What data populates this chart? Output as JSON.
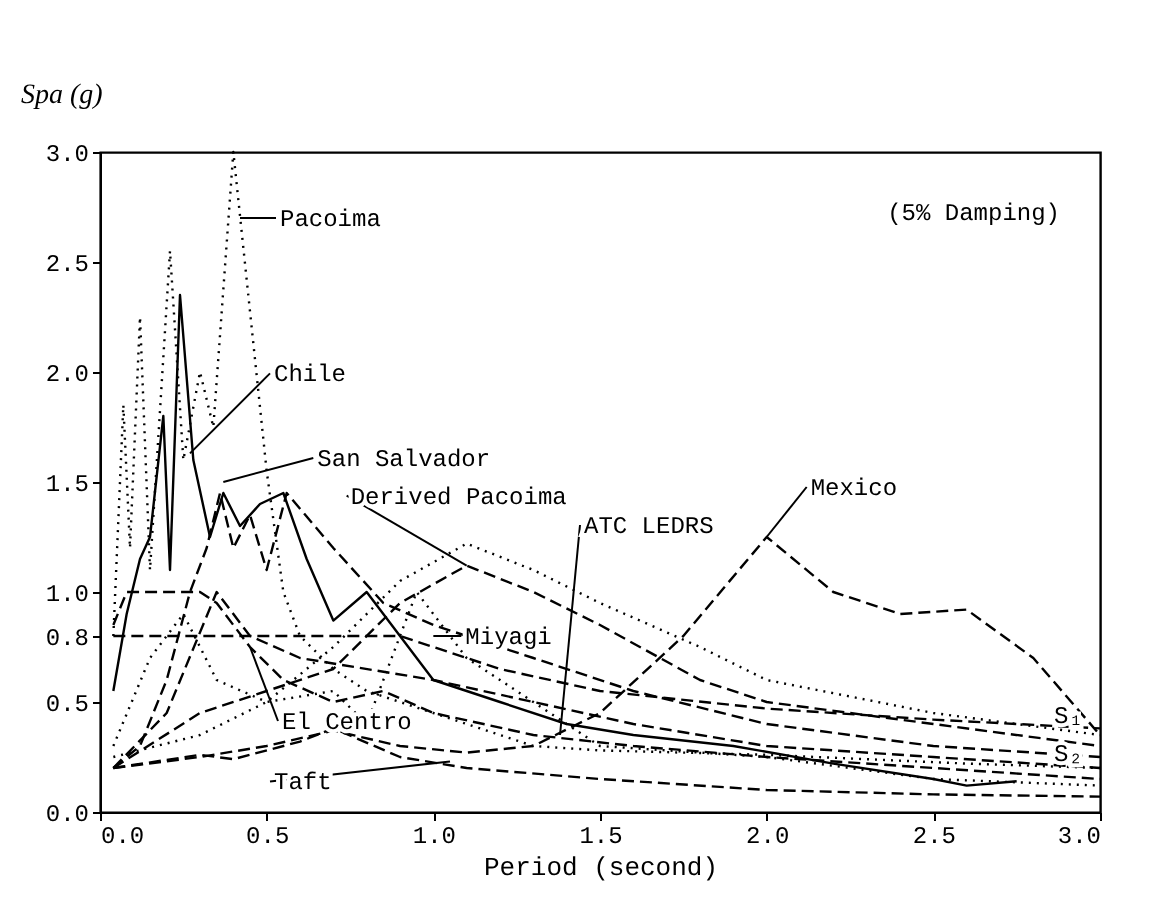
{
  "chart_data": {
    "type": "line",
    "xlabel": "Period (second)",
    "ylabel": "Spa (g)",
    "xlim": [
      0,
      3
    ],
    "ylim": [
      0,
      3
    ],
    "xticks": [
      {
        "value": 0,
        "label": "0.0"
      },
      0.5,
      {
        "value": 1,
        "label": "1.0"
      },
      1.5,
      {
        "value": 2,
        "label": "2.0"
      },
      2.5,
      {
        "value": 3,
        "label": "3.0"
      }
    ],
    "yticks": [
      {
        "value": 0,
        "label": "0.0"
      },
      0.5,
      0.8,
      {
        "value": 1,
        "label": "1.0"
      },
      1.5,
      {
        "value": 2,
        "label": "2.0"
      },
      2.5,
      {
        "value": 3,
        "label": "3.0"
      }
    ],
    "grid": false,
    "series": [
      {
        "color": "#000000",
        "line_style": "dotted",
        "x": [
          0.04,
          0.07,
          0.09,
          0.12,
          0.15,
          0.21,
          0.25,
          0.3,
          0.34,
          0.4,
          0.5,
          0.55,
          0.6,
          0.7,
          0.8,
          1.0,
          1.3,
          1.5,
          2.0,
          2.3,
          2.6,
          3.0
        ],
        "values": [
          0.8,
          1.85,
          1.2,
          2.25,
          1.1,
          2.55,
          1.6,
          2.0,
          1.75,
          3.0,
          1.55,
          1.0,
          0.8,
          0.65,
          0.55,
          0.45,
          0.3,
          0.28,
          0.26,
          0.24,
          0.22,
          0.2
        ]
      },
      {
        "color": "#000000",
        "line_style": "solid",
        "x": [
          0.04,
          0.08,
          0.12,
          0.15,
          0.19,
          0.21,
          0.24,
          0.28,
          0.33,
          0.37,
          0.42,
          0.48,
          0.55,
          0.62,
          0.7,
          0.8,
          0.9,
          1.0,
          1.2,
          1.4,
          1.6,
          1.9,
          2.2,
          2.5,
          2.6,
          2.75
        ],
        "values": [
          0.55,
          0.9,
          1.15,
          1.25,
          1.8,
          1.1,
          2.35,
          1.6,
          1.25,
          1.45,
          1.3,
          1.4,
          1.45,
          1.15,
          0.87,
          1.0,
          0.8,
          0.6,
          0.5,
          0.4,
          0.35,
          0.3,
          0.22,
          0.15,
          0.12,
          0.14
        ]
      },
      {
        "color": "#000000",
        "line_style": "dashed",
        "x": [
          0.04,
          0.12,
          0.2,
          0.27,
          0.32,
          0.36,
          0.4,
          0.45,
          0.5,
          0.56,
          0.7,
          0.85,
          1.0,
          1.3,
          1.6,
          2.0,
          2.5,
          3.0
        ],
        "values": [
          0.2,
          0.3,
          0.6,
          1.0,
          1.2,
          1.45,
          1.2,
          1.35,
          1.1,
          1.45,
          1.2,
          0.95,
          0.85,
          0.7,
          0.55,
          0.4,
          0.3,
          0.25
        ]
      },
      {
        "color": "#000000",
        "line_style": "dotted",
        "x": [
          0.04,
          0.3,
          0.5,
          0.7,
          0.9,
          1.1,
          1.3,
          1.5,
          1.8,
          2.0,
          2.5,
          3.0
        ],
        "values": [
          0.25,
          0.35,
          0.5,
          0.75,
          1.05,
          1.22,
          1.1,
          0.95,
          0.75,
          0.6,
          0.45,
          0.35
        ]
      },
      {
        "color": "#000000",
        "line_style": "dashed",
        "x": [
          0.04,
          0.3,
          0.5,
          0.7,
          0.9,
          1.1,
          1.3,
          1.5,
          1.8,
          2.0,
          2.5,
          3.0
        ],
        "values": [
          0.2,
          0.45,
          0.55,
          0.65,
          0.95,
          1.12,
          1.0,
          0.85,
          0.6,
          0.5,
          0.4,
          0.3
        ]
      },
      {
        "color": "#000000",
        "line_style": "dashed",
        "x": [
          0.04,
          0.3,
          0.5,
          0.7,
          0.9,
          1.1,
          1.3,
          1.5,
          1.75,
          2.0,
          2.2,
          2.4,
          2.6,
          2.8,
          3.0
        ],
        "values": [
          0.2,
          0.25,
          0.3,
          0.37,
          0.3,
          0.27,
          0.3,
          0.45,
          0.8,
          1.25,
          1.0,
          0.9,
          0.92,
          0.7,
          0.35
        ]
      },
      {
        "color": "#000000",
        "line_style": "dotted",
        "x": [
          0.04,
          0.15,
          0.25,
          0.35,
          0.5,
          0.7,
          0.8,
          0.95,
          1.1,
          1.3,
          1.5,
          2.0,
          2.5,
          3.0
        ],
        "values": [
          0.3,
          0.7,
          0.9,
          0.6,
          0.5,
          0.55,
          0.4,
          1.0,
          0.7,
          0.5,
          0.3,
          0.25,
          0.15,
          0.12
        ]
      },
      {
        "color": "#000000",
        "line_style": "dashed",
        "x": [
          0.04,
          0.08,
          0.3,
          0.35,
          0.45,
          0.55,
          0.7,
          0.85,
          1.0,
          1.3,
          1.6,
          2.0,
          2.5,
          3.0
        ],
        "values": [
          0.85,
          1.0,
          1.0,
          0.95,
          0.75,
          0.6,
          0.5,
          0.55,
          0.45,
          0.35,
          0.3,
          0.25,
          0.2,
          0.15
        ]
      },
      {
        "color": "#000000",
        "line_style": "dashed",
        "x": [
          0.04,
          0.3,
          0.4,
          0.6,
          0.7,
          0.9,
          1.1,
          1.5,
          2.0,
          2.5,
          3.0
        ],
        "values": [
          0.2,
          0.26,
          0.24,
          0.32,
          0.38,
          0.25,
          0.2,
          0.15,
          0.1,
          0.08,
          0.07
        ]
      },
      {
        "color": "#000000",
        "line_style": "dashed",
        "x": [
          0.04,
          0.9,
          1.2,
          1.5,
          2.0,
          2.5,
          3.0
        ],
        "values": [
          0.8,
          0.8,
          0.65,
          0.55,
          0.47,
          0.42,
          0.38
        ]
      },
      {
        "color": "#000000",
        "line_style": "dashed",
        "x": [
          0.04,
          0.2,
          0.35,
          0.45,
          0.6,
          1.0,
          1.3,
          1.6,
          2.0,
          2.5,
          3.0
        ],
        "values": [
          0.2,
          0.45,
          1.0,
          0.8,
          0.7,
          0.6,
          0.5,
          0.4,
          0.3,
          0.25,
          0.2
        ]
      }
    ],
    "annotations": [
      {
        "text": "Pacoima",
        "x": 0.42,
        "y": 2.7
      },
      {
        "text": "Chile",
        "x": 0.27,
        "y": 1.63
      },
      {
        "text": "San Salvador",
        "x": 0.37,
        "y": 1.5
      },
      {
        "text": "Derived Pacoima",
        "x": 1.1,
        "y": 1.12
      },
      {
        "text": "ATC LEDRS",
        "x": 1.38,
        "y": 0.35
      },
      {
        "text": "Mexico",
        "x": 2.0,
        "y": 1.25
      },
      {
        "text": "Miyagi",
        "x": 1.0,
        "y": 0.8
      },
      {
        "text": "El Centro",
        "x": 0.45,
        "y": 0.75
      },
      {
        "text": "Taft",
        "x": 1.05,
        "y": 0.23
      },
      {
        "text": "S₁",
        "x": 2.85,
        "y": 0.44
      },
      {
        "text": "S₂",
        "x": 2.85,
        "y": 0.27
      },
      "(5% Damping)"
    ]
  }
}
